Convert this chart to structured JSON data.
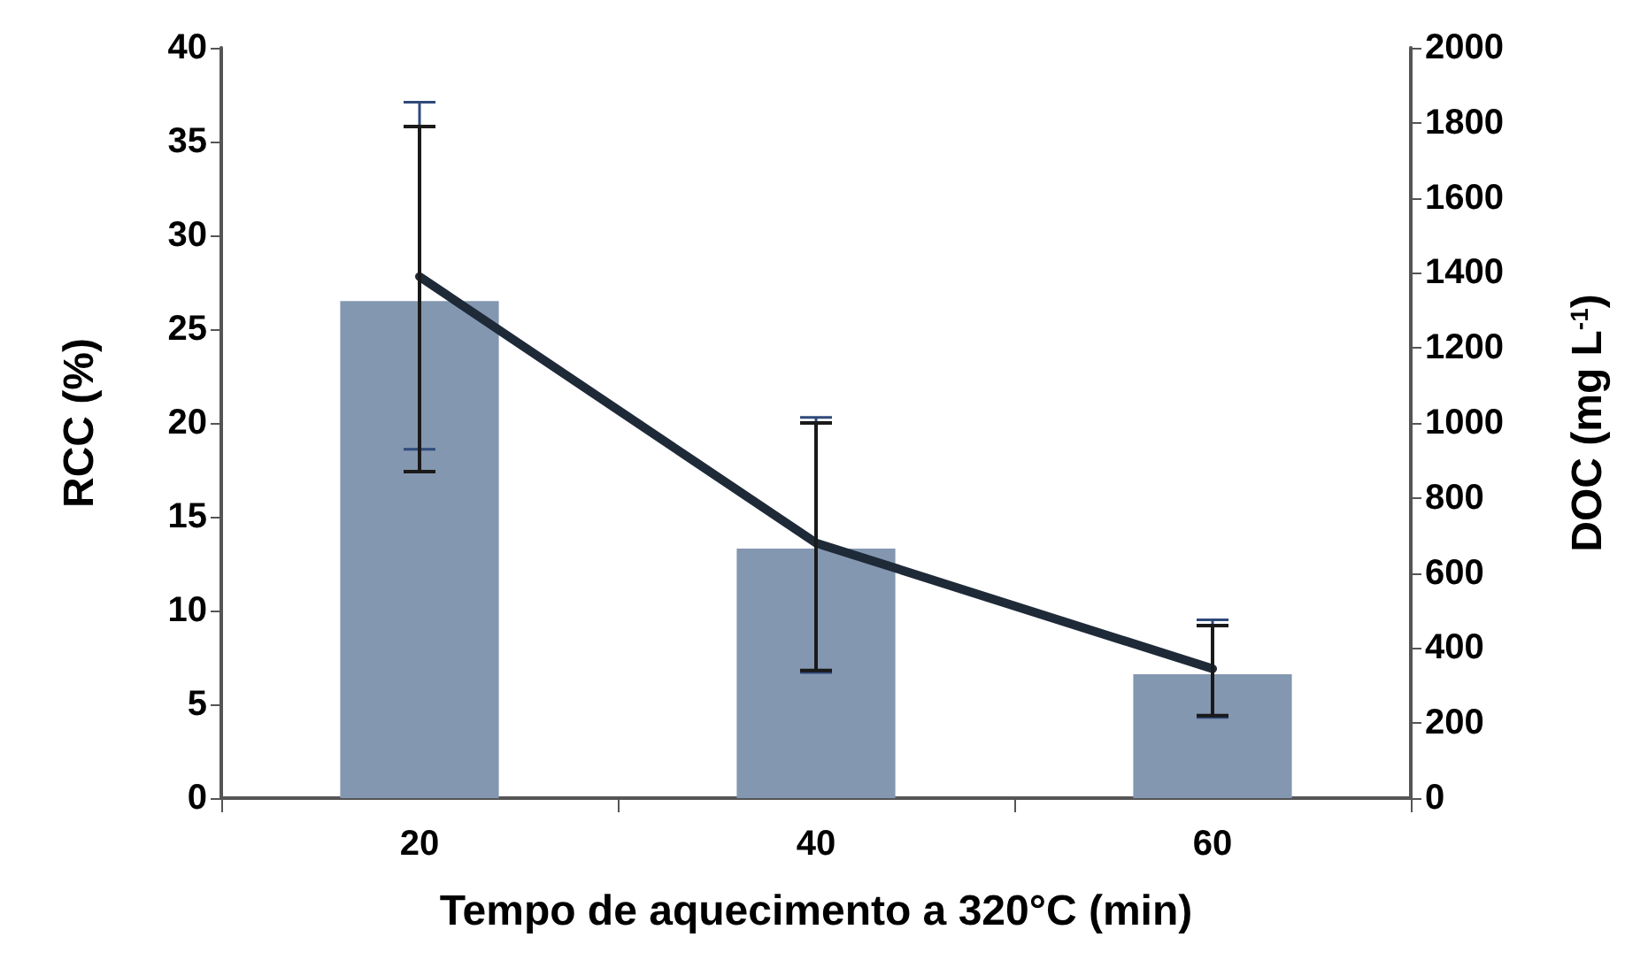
{
  "chart_data": {
    "type": "bar",
    "xlabel": "Tempo de aquecimento a 320°C (min)",
    "ylabel": "RCC (%)",
    "y2label": "DOC (mg L$^{-1}$)",
    "categories": [
      "20",
      "40",
      "60"
    ],
    "series": [
      {
        "color": "#8497b0",
        "values": [
          26.5,
          13.3,
          6.6
        ],
        "errors": [
          [
            18.6,
            37.1
          ],
          [
            6.7,
            20.3
          ],
          [
            4.3,
            9.5
          ]
        ]
      },
      {
        "type": "line",
        "axis": "y2",
        "color": "#1f2a38",
        "values": [
          1390,
          680,
          345
        ],
        "errors": [
          [
            870,
            1790
          ],
          [
            340,
            1000
          ],
          [
            220,
            460
          ]
        ],
        "marker": "none",
        "line_style": "solid"
      }
    ],
    "ylim": [
      0,
      40
    ],
    "yticks": [
      0,
      5,
      10,
      15,
      20,
      25,
      30,
      35,
      40
    ],
    "y2lim": [
      0,
      2000
    ],
    "y2ticks": [
      0,
      200,
      400,
      600,
      800,
      1000,
      1200,
      1400,
      1600,
      1800,
      2000
    ],
    "grid": false
  }
}
